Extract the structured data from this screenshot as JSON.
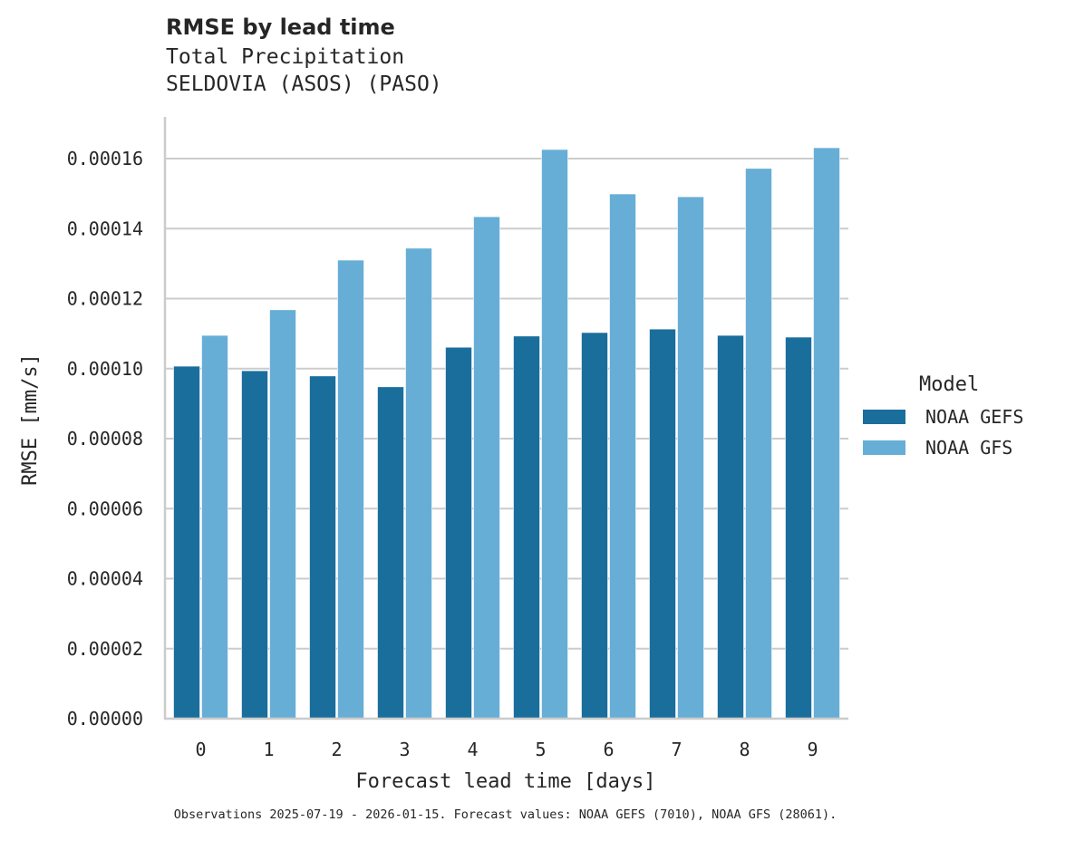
{
  "header": {
    "title": "RMSE by lead time",
    "subtitle_line1": "Total Precipitation",
    "subtitle_line2": "SELDOVIA (ASOS) (PASO)"
  },
  "legend": {
    "title": "Model",
    "items": [
      {
        "label": "NOAA GEFS",
        "color": "#1a6e9c"
      },
      {
        "label": "NOAA GFS",
        "color": "#67aed7"
      }
    ]
  },
  "footnote": "Observations 2025-07-19 - 2026-01-15. Forecast values: NOAA GEFS (7010), NOAA GFS (28061).",
  "colors": {
    "gefs": "#1a6e9c",
    "gfs": "#67aed7",
    "grid": "#cccccc",
    "axis": "#cccccc",
    "text": "#262626"
  },
  "chart_data": {
    "type": "bar",
    "title": "RMSE by lead time",
    "subtitle": "Total Precipitation\nSELDOVIA (ASOS) (PASO)",
    "xlabel": "Forecast lead time [days]",
    "ylabel": "RMSE [mm/s]",
    "categories": [
      "0",
      "1",
      "2",
      "3",
      "4",
      "5",
      "6",
      "7",
      "8",
      "9"
    ],
    "series": [
      {
        "name": "NOAA GEFS",
        "color": "#1a6e9c",
        "values": [
          0.0001007,
          9.94e-05,
          9.79e-05,
          9.48e-05,
          0.0001061,
          0.0001093,
          0.0001103,
          0.0001113,
          0.0001095,
          0.000109
        ]
      },
      {
        "name": "NOAA GFS",
        "color": "#67aed7",
        "values": [
          0.0001095,
          0.0001168,
          0.000131,
          0.0001344,
          0.0001434,
          0.0001626,
          0.0001499,
          0.0001491,
          0.0001572,
          0.0001631
        ]
      }
    ],
    "yticks": [
      "0.00000",
      "0.00002",
      "0.00004",
      "0.00006",
      "0.00008",
      "0.00010",
      "0.00012",
      "0.00014",
      "0.00016"
    ],
    "ylim": [
      0,
      0.000172
    ],
    "grid": "horizontal",
    "legend_position": "right, outside",
    "legend_title": "Model",
    "footnote": "Observations 2025-07-19 - 2026-01-15. Forecast values: NOAA GEFS (7010), NOAA GFS (28061)."
  }
}
